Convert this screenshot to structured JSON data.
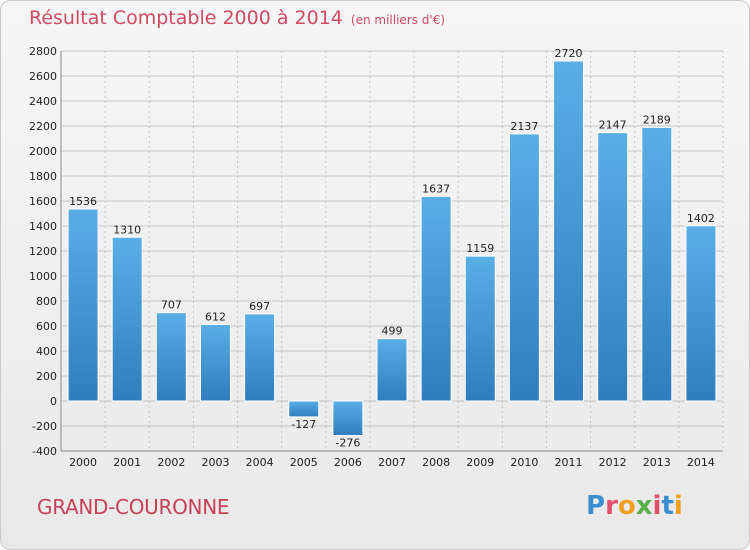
{
  "header": {
    "title": "Résultat Comptable 2000 à 2014",
    "subtitle": "(en milliers d'€)"
  },
  "footer": {
    "place": "GRAND-COURONNE",
    "brand": "Proxiti"
  },
  "colors": {
    "title": "#d04a62",
    "bar_top": "#5aaee6",
    "bar_bottom": "#2f7dbd",
    "grid": "#c4c4c4",
    "brand_letters": [
      "#3b8fd0",
      "#e0506a",
      "#f0a020",
      "#5ab04a",
      "#e0506a",
      "#3b8fd0",
      "#f0a020"
    ]
  },
  "chart_data": {
    "type": "bar",
    "title": "Résultat Comptable 2000 à 2014",
    "subtitle": "(en milliers d'€)",
    "categories": [
      "2000",
      "2001",
      "2002",
      "2003",
      "2004",
      "2005",
      "2006",
      "2007",
      "2008",
      "2009",
      "2010",
      "2011",
      "2012",
      "2013",
      "2014"
    ],
    "values": [
      1536,
      1310,
      707,
      612,
      697,
      -127,
      -276,
      499,
      1637,
      1159,
      2137,
      2720,
      2147,
      2189,
      1402
    ],
    "data_labels": [
      "1536",
      "1310",
      "707",
      "612",
      "697",
      "-127",
      "-276",
      "499",
      "1637",
      "1159",
      "2137",
      "2720",
      "2147",
      "2189",
      "1402"
    ],
    "ylim": [
      -400,
      2800
    ],
    "yticks": [
      -400,
      -200,
      0,
      200,
      400,
      600,
      800,
      1000,
      1200,
      1400,
      1600,
      1800,
      2000,
      2200,
      2400,
      2600,
      2800
    ],
    "ytick_labels": [
      "-400",
      "-200",
      "0",
      "200",
      "400",
      "600",
      "800",
      "1000",
      "1200",
      "1400",
      "1600",
      "1800",
      "2000",
      "2200",
      "2400",
      "2600",
      "2800"
    ],
    "xlabel": "",
    "ylabel": "",
    "grid": true,
    "legend": "none"
  }
}
